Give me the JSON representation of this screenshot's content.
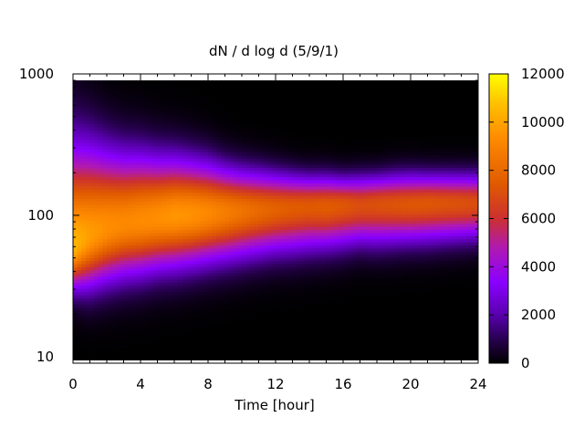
{
  "chart_data": {
    "type": "heatmap",
    "title": "dN / d log d (5/9/1)",
    "xlabel": "Time [hour]",
    "ylabel": "",
    "x_ticks": [
      "0",
      "4",
      "8",
      "12",
      "16",
      "20",
      "24"
    ],
    "y_ticks": [
      "10",
      "100",
      "1000"
    ],
    "y_scale": "log",
    "xlim": [
      0,
      24
    ],
    "ylim": [
      9,
      1000
    ],
    "data_yrange": [
      9.5,
      900
    ],
    "colorbar": {
      "range": [
        0,
        12000
      ],
      "ticks": [
        "0",
        "2000",
        "4000",
        "6000",
        "8000",
        "10000",
        "12000"
      ]
    },
    "grid": false,
    "legend": "colorbar on right",
    "colors": {
      "palette": [
        "#000000",
        "#3a0066",
        "#8a00ff",
        "#c4287a",
        "#e05a00",
        "#ff9900",
        "#ffff00"
      ],
      "frame": "#000000"
    },
    "series": [
      {
        "time": [
          0,
          1,
          2,
          3,
          4,
          5,
          6,
          7,
          8,
          9,
          10,
          11,
          12,
          13,
          14,
          15,
          16,
          17,
          18,
          19,
          20,
          21,
          22,
          23,
          24
        ],
        "mode_diameter": [
          60,
          72,
          82,
          88,
          92,
          96,
          100,
          102,
          104,
          106,
          108,
          110,
          112,
          114,
          116,
          116,
          118,
          118,
          120,
          120,
          120,
          122,
          122,
          122,
          122
        ],
        "peak_value": [
          10500,
          9800,
          9400,
          9200,
          9300,
          9400,
          9600,
          9500,
          9200,
          8800,
          8400,
          8000,
          7700,
          7500,
          7400,
          7500,
          7300,
          7000,
          7100,
          7200,
          7300,
          7300,
          7200,
          7100,
          7000
        ],
        "lower_half_diameter": [
          36,
          38,
          42,
          45,
          47,
          50,
          52,
          54,
          56,
          58,
          60,
          62,
          64,
          65,
          67,
          68,
          70,
          72,
          72,
          73,
          74,
          75,
          76,
          77,
          78
        ],
        "upper_half_diameter": [
          210,
          220,
          215,
          210,
          210,
          205,
          205,
          200,
          195,
          185,
          180,
          178,
          175,
          172,
          170,
          170,
          168,
          170,
          172,
          175,
          176,
          176,
          176,
          176,
          176
        ]
      }
    ]
  }
}
